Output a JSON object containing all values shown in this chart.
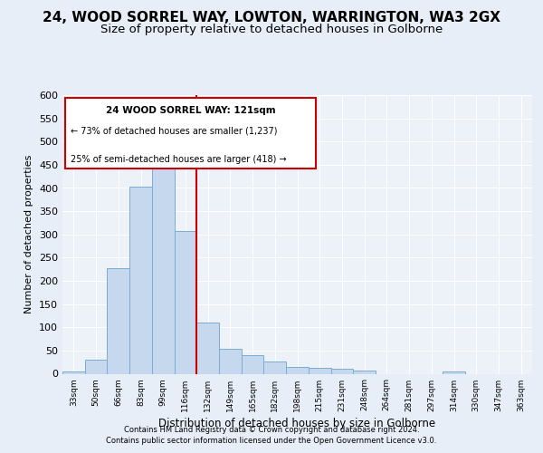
{
  "title1": "24, WOOD SORREL WAY, LOWTON, WARRINGTON, WA3 2GX",
  "title2": "Size of property relative to detached houses in Golborne",
  "xlabel": "Distribution of detached houses by size in Golborne",
  "ylabel": "Number of detached properties",
  "categories": [
    "33sqm",
    "50sqm",
    "66sqm",
    "83sqm",
    "99sqm",
    "116sqm",
    "132sqm",
    "149sqm",
    "165sqm",
    "182sqm",
    "198sqm",
    "215sqm",
    "231sqm",
    "248sqm",
    "264sqm",
    "281sqm",
    "297sqm",
    "314sqm",
    "330sqm",
    "347sqm",
    "363sqm"
  ],
  "values": [
    5,
    30,
    228,
    403,
    463,
    307,
    110,
    54,
    40,
    27,
    15,
    12,
    10,
    7,
    0,
    0,
    0,
    5,
    0,
    0,
    0
  ],
  "bar_color": "#c5d8ee",
  "bar_edge_color": "#7aadd4",
  "annotation_text1": "24 WOOD SORREL WAY: 121sqm",
  "annotation_text2": "← 73% of detached houses are smaller (1,237)",
  "annotation_text3": "25% of semi-detached houses are larger (418) →",
  "annotation_box_color": "#ffffff",
  "annotation_border_color": "#cc0000",
  "footer1": "Contains HM Land Registry data © Crown copyright and database right 2024.",
  "footer2": "Contains public sector information licensed under the Open Government Licence v3.0.",
  "ylim": [
    0,
    600
  ],
  "yticks": [
    0,
    50,
    100,
    150,
    200,
    250,
    300,
    350,
    400,
    450,
    500,
    550,
    600
  ],
  "bg_color": "#e8eef7",
  "plot_bg_color": "#edf2f9",
  "grid_color": "#ffffff",
  "red_line_color": "#cc0000",
  "red_line_x": 5.5
}
